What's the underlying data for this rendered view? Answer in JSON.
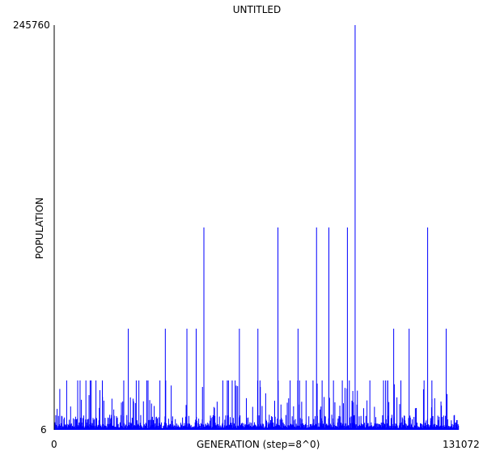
{
  "chart_data": {
    "type": "bar",
    "title": "UNTITLED",
    "xlabel": "GENERATION (step=8^0)",
    "ylabel": "POPULATION",
    "xlim": [
      0,
      131072
    ],
    "ylim": [
      6,
      245760
    ],
    "x_ticks": [
      "0",
      "131072"
    ],
    "y_ticks": [
      "6",
      "245760"
    ],
    "grid": false,
    "legend": "none",
    "series_color": "#0000ff",
    "spikes": [
      {
        "x": 12000,
        "y": 30000
      },
      {
        "x": 24000,
        "y": 61440
      },
      {
        "x": 30000,
        "y": 30000
      },
      {
        "x": 36000,
        "y": 61440
      },
      {
        "x": 43000,
        "y": 61440
      },
      {
        "x": 46000,
        "y": 61440
      },
      {
        "x": 48500,
        "y": 122880
      },
      {
        "x": 60000,
        "y": 61440
      },
      {
        "x": 66000,
        "y": 61440
      },
      {
        "x": 72500,
        "y": 122880
      },
      {
        "x": 79000,
        "y": 61440
      },
      {
        "x": 85000,
        "y": 122880
      },
      {
        "x": 89000,
        "y": 122880
      },
      {
        "x": 95000,
        "y": 122880
      },
      {
        "x": 97500,
        "y": 245760
      },
      {
        "x": 110000,
        "y": 61440
      },
      {
        "x": 115000,
        "y": 61440
      },
      {
        "x": 121000,
        "y": 122880
      },
      {
        "x": 127000,
        "y": 61440
      }
    ]
  }
}
